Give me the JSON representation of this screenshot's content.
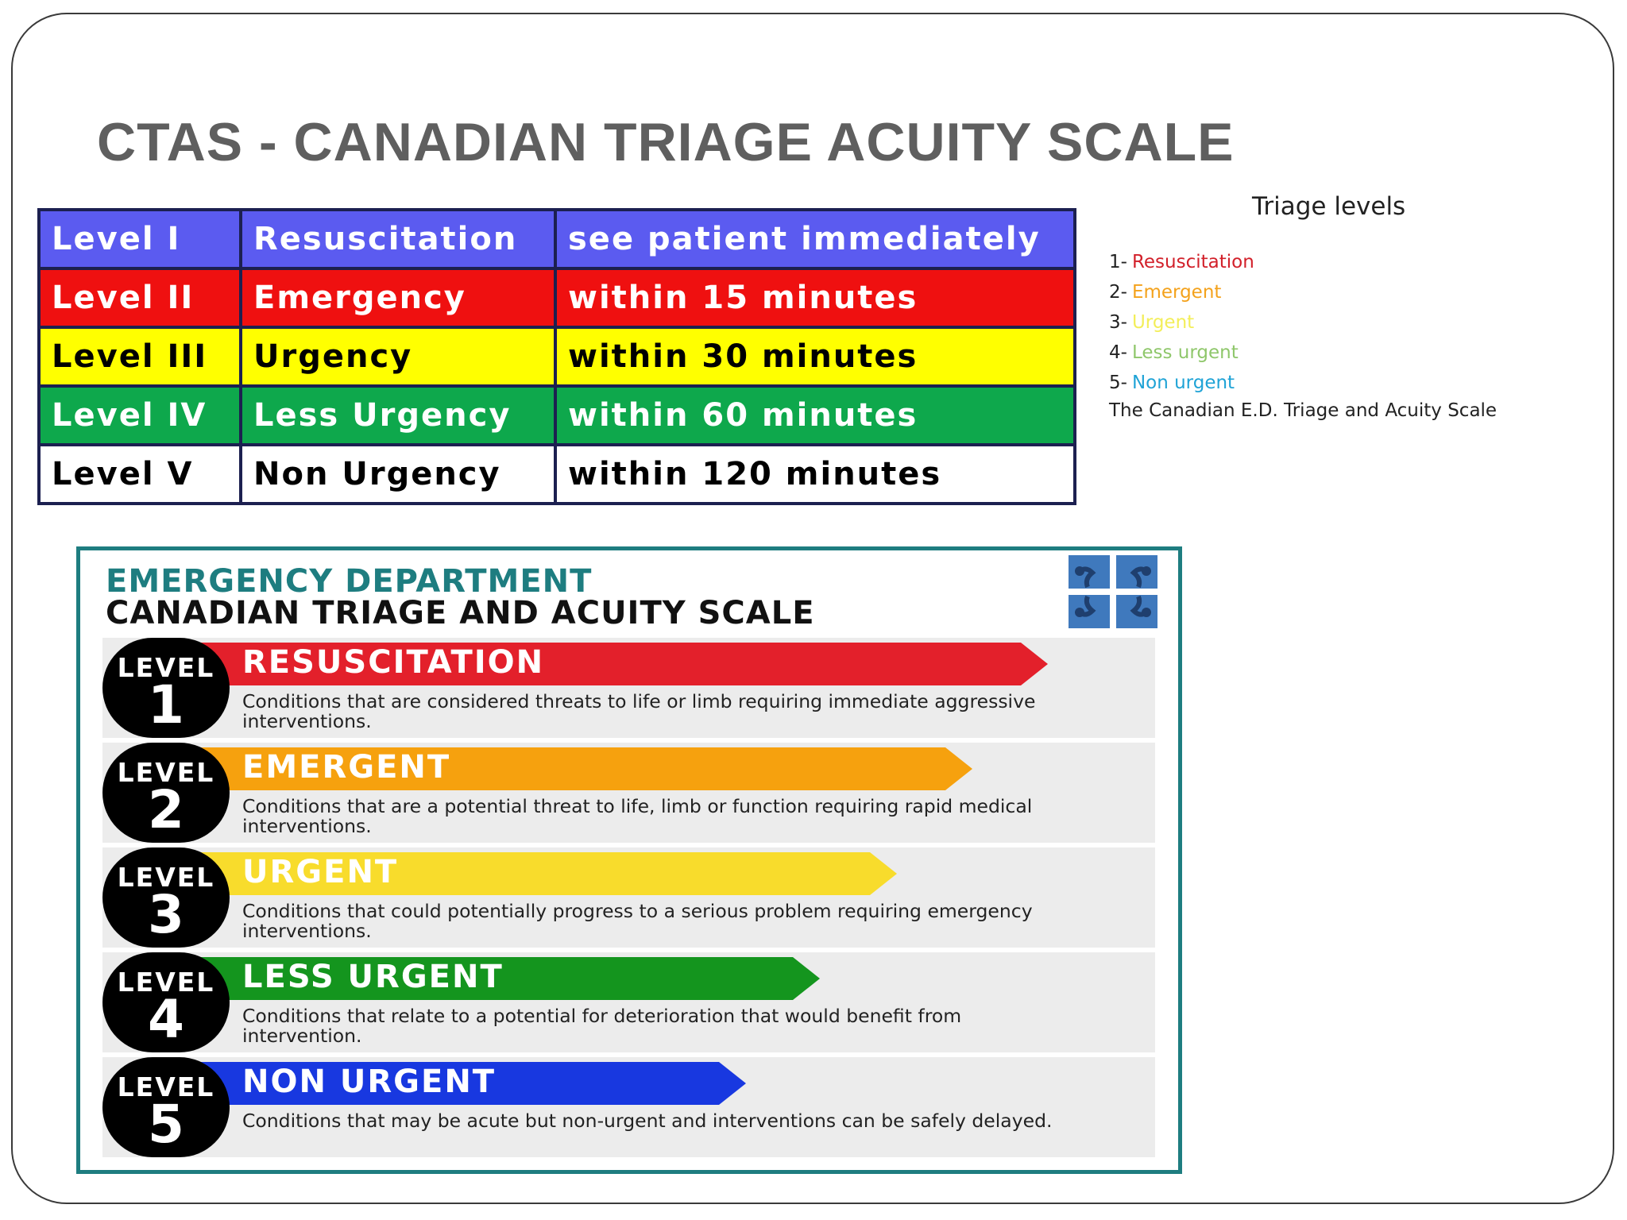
{
  "slide": {
    "title": "CTAS - CANADIAN TRIAGE ACUITY SCALE"
  },
  "level_table": {
    "rows": [
      {
        "level": "Level I",
        "category": "Resuscitation",
        "time": "see patient immediately",
        "bg": "#5b5bf0",
        "fg": "#ffffff"
      },
      {
        "level": "Level II",
        "category": "Emergency",
        "time": "within 15 minutes",
        "bg": "#ef1010",
        "fg": "#ffffff"
      },
      {
        "level": "Level III",
        "category": "Urgency",
        "time": "within 30 minutes",
        "bg": "#ffff00",
        "fg": "#000000"
      },
      {
        "level": "Level IV",
        "category": "Less Urgency",
        "time": "within 60 minutes",
        "bg": "#0ea84c",
        "fg": "#ffffff"
      },
      {
        "level": "Level V",
        "category": "Non Urgency",
        "time": "within 120 minutes",
        "bg": "#ffffff",
        "fg": "#000000"
      }
    ]
  },
  "legend": {
    "title": "Triage levels",
    "items": [
      {
        "num": "1-",
        "label": "Resuscitation",
        "color": "#d2202a"
      },
      {
        "num": "2-",
        "label": "Emergent",
        "color": "#f4a21c"
      },
      {
        "num": "3-",
        "label": "Urgent",
        "color": "#f3ee5a"
      },
      {
        "num": "4-",
        "label": "Less urgent",
        "color": "#8fc76b"
      },
      {
        "num": "5-",
        "label": "Non urgent",
        "color": "#1fa3d6"
      }
    ],
    "caption": "The Canadian E.D. Triage and Acuity Scale"
  },
  "infographic": {
    "heading1": "EMERGENCY DEPARTMENT",
    "heading2": "CANADIAN TRIAGE AND ACUITY SCALE",
    "level_word": "LEVEL",
    "levels": [
      {
        "num": "1",
        "title": "RESUSCITATION",
        "desc": "Conditions that are considered threats to life or limb requiring immediate aggressive interventions.",
        "color": "#e3202b"
      },
      {
        "num": "2",
        "title": "EMERGENT",
        "desc": "Conditions that are a potential threat to life, limb or function requiring rapid medical interventions.",
        "color": "#f6a10e"
      },
      {
        "num": "3",
        "title": "URGENT",
        "desc": "Conditions that could potentially progress to a serious problem requiring emergency interventions.",
        "color": "#f8dc2c"
      },
      {
        "num": "4",
        "title": "LESS URGENT",
        "desc": "Conditions that relate to a potential for deterioration that would benefit from intervention.",
        "color": "#14951e"
      },
      {
        "num": "5",
        "title": "NON URGENT",
        "desc": "Conditions that may be acute but non-urgent and interventions can be safely delayed.",
        "color": "#1838e0"
      }
    ],
    "border_color": "#1e7d80",
    "logo_color": "#3f79bd"
  }
}
